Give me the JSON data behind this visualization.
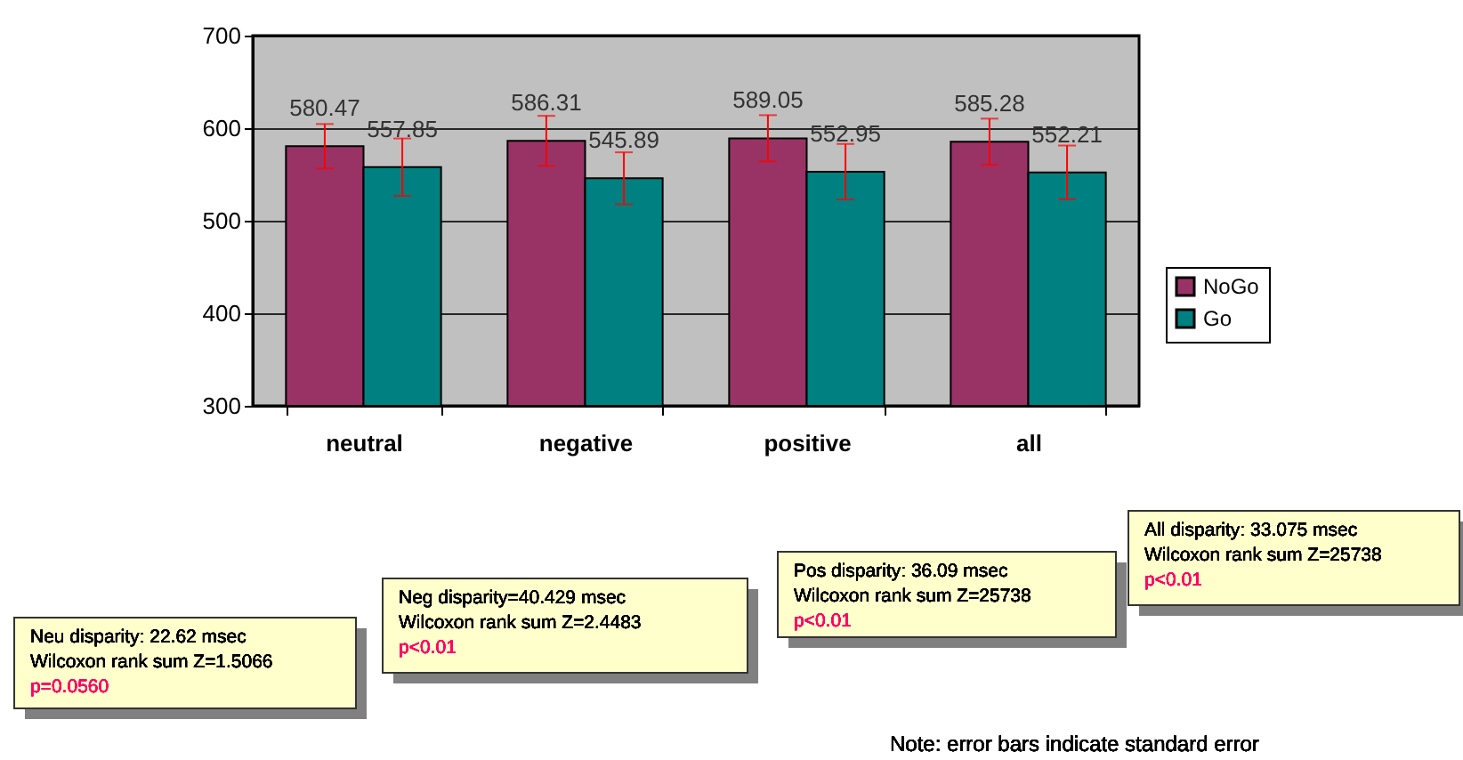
{
  "chart_data": {
    "type": "bar",
    "categories": [
      "neutral",
      "negative",
      "positive",
      "all"
    ],
    "series": [
      {
        "name": "NoGo",
        "color": "#993366",
        "values": [
          580.47,
          586.31,
          589.05,
          585.28
        ],
        "errors": [
          24,
          27,
          25,
          25
        ]
      },
      {
        "name": "Go",
        "color": "#008080",
        "values": [
          557.85,
          545.89,
          552.95,
          552.21
        ],
        "errors": [
          31,
          28,
          30,
          29
        ]
      }
    ],
    "ylim": [
      300,
      700
    ],
    "yticks": [
      300,
      400,
      500,
      600,
      700
    ],
    "grid": "y",
    "legend": "right",
    "data_labels": true,
    "annotations": [
      "Neu disparity:  22.62  msec\nWilcoxon rank sum  Z=1.5066\np=0.0560",
      "Neg disparity=40.429  msec\nWilcoxon rank sum  Z=2.4483\np<0.01",
      "Pos disparity:  36.09  msec\nWilcoxon rank sum  Z=25738\np<0.01",
      "All disparity:  33.075  msec\nWilcoxon rank sum  Z=25738\np<0.01",
      "Note:  error bars indicate standard error"
    ]
  }
}
